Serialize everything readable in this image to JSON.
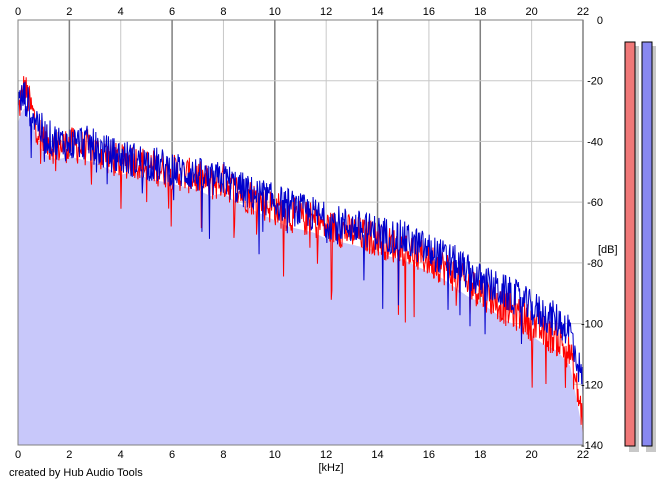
{
  "footer": {
    "credit": "created by Hub Audio Tools"
  },
  "colors": {
    "background": "#ffffff",
    "grid_minor": "#c8c8c8",
    "grid_major": "#808080",
    "fill": "#c8c8fa",
    "left_channel": "#ff0000",
    "right_channel": "#0000cc",
    "meter_left": "#f07878",
    "meter_right": "#8888f0"
  },
  "chart_data": {
    "type": "line",
    "xlabel": "[kHz]",
    "ylabel": "[dB]",
    "xlim": [
      0,
      22
    ],
    "ylim": [
      -140,
      0
    ],
    "x_ticks": [
      "0",
      "2",
      "4",
      "6",
      "8",
      "10",
      "12",
      "14",
      "16",
      "18",
      "20",
      "22"
    ],
    "y_ticks": [
      "0",
      "-20",
      "-40",
      "-60",
      "-80",
      "-100",
      "-120",
      "-140"
    ],
    "grid": true,
    "series": [
      {
        "color": "#ff0000",
        "x": [
          0,
          0.25,
          0.5,
          0.75,
          1,
          1.5,
          2,
          2.5,
          3,
          3.5,
          4,
          4.5,
          5,
          5.5,
          6,
          6.5,
          7,
          7.5,
          8,
          8.5,
          9,
          9.5,
          10,
          10.5,
          11,
          11.5,
          12,
          12.5,
          13,
          13.5,
          14,
          14.5,
          15,
          15.5,
          16,
          16.5,
          17,
          17.5,
          18,
          18.5,
          19,
          19.5,
          20,
          20.5,
          21,
          21.5,
          22
        ],
        "values": [
          -30,
          -22,
          -29,
          -35,
          -40,
          -42,
          -41,
          -42,
          -43,
          -45,
          -47,
          -46,
          -48,
          -49,
          -50,
          -51,
          -52,
          -54,
          -53,
          -56,
          -58,
          -60,
          -62,
          -64,
          -65,
          -66,
          -68,
          -69,
          -70,
          -71,
          -72,
          -74,
          -75,
          -77,
          -79,
          -81,
          -84,
          -87,
          -89,
          -92,
          -95,
          -97,
          -100,
          -103,
          -105,
          -110,
          -132
        ]
      },
      {
        "color": "#0000cc",
        "x": [
          0,
          0.25,
          0.5,
          0.75,
          1,
          1.5,
          2,
          2.5,
          3,
          3.5,
          4,
          4.5,
          5,
          5.5,
          6,
          6.5,
          7,
          7.5,
          8,
          8.5,
          9,
          9.5,
          10,
          10.5,
          11,
          11.5,
          12,
          12.5,
          13,
          13.5,
          14,
          14.5,
          15,
          15.5,
          16,
          16.5,
          17,
          17.5,
          18,
          18.5,
          19,
          19.5,
          20,
          20.5,
          21,
          21.5,
          22
        ],
        "values": [
          -28,
          -25,
          -30,
          -33,
          -38,
          -40,
          -41,
          -40,
          -42,
          -44,
          -45,
          -46,
          -47,
          -48,
          -49,
          -50,
          -51,
          -53,
          -52,
          -55,
          -57,
          -58,
          -60,
          -61,
          -63,
          -64,
          -66,
          -67,
          -68,
          -69,
          -70,
          -71,
          -72,
          -74,
          -76,
          -78,
          -80,
          -83,
          -86,
          -88,
          -90,
          -92,
          -95,
          -97,
          -99,
          -102,
          -120
        ]
      }
    ],
    "meters": {
      "left": 1.0,
      "right": 1.0
    }
  }
}
